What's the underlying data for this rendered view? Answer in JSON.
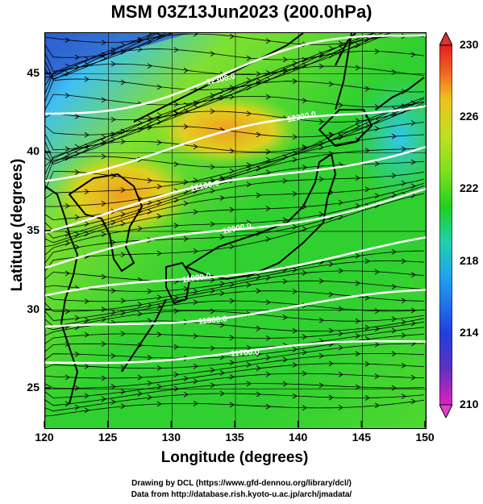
{
  "title": "MSM 03Z13Jun2023 (200.0hPa)",
  "x_axis": {
    "label": "Longitude (degrees)",
    "ticks": [
      "120",
      "125",
      "130",
      "135",
      "140",
      "145",
      "150"
    ],
    "range": [
      120,
      150
    ]
  },
  "y_axis": {
    "label": "Latitude  (degrees)",
    "ticks": [
      "25",
      "30",
      "35",
      "40",
      "45"
    ],
    "range": [
      22.5,
      47.6
    ]
  },
  "colorbar": {
    "ticks": [
      "230",
      "226",
      "222",
      "218",
      "214",
      "210"
    ],
    "range": [
      210,
      230
    ],
    "colors": [
      "#e020c0",
      "#6030c0",
      "#2040e0",
      "#20a0f0",
      "#20d0b0",
      "#20d020",
      "#80e020",
      "#c0e020",
      "#f0c020",
      "#f06020",
      "#e02020"
    ]
  },
  "contours": {
    "labels": [
      "12300.0",
      "12200.0",
      "12100.0",
      "12000.0",
      "11900.0",
      "11800.0",
      "11700.0"
    ],
    "color": "#ffffff"
  },
  "map": {
    "coastline_color": "#000000",
    "streamline_color": "#000000"
  },
  "credits": {
    "line1": "Drawing by DCL (https://www.gfd-dennou.org/library/dcl/)",
    "line2": "Data from http://database.rish.kyoto-u.ac.jp/arch/jmadata/"
  }
}
